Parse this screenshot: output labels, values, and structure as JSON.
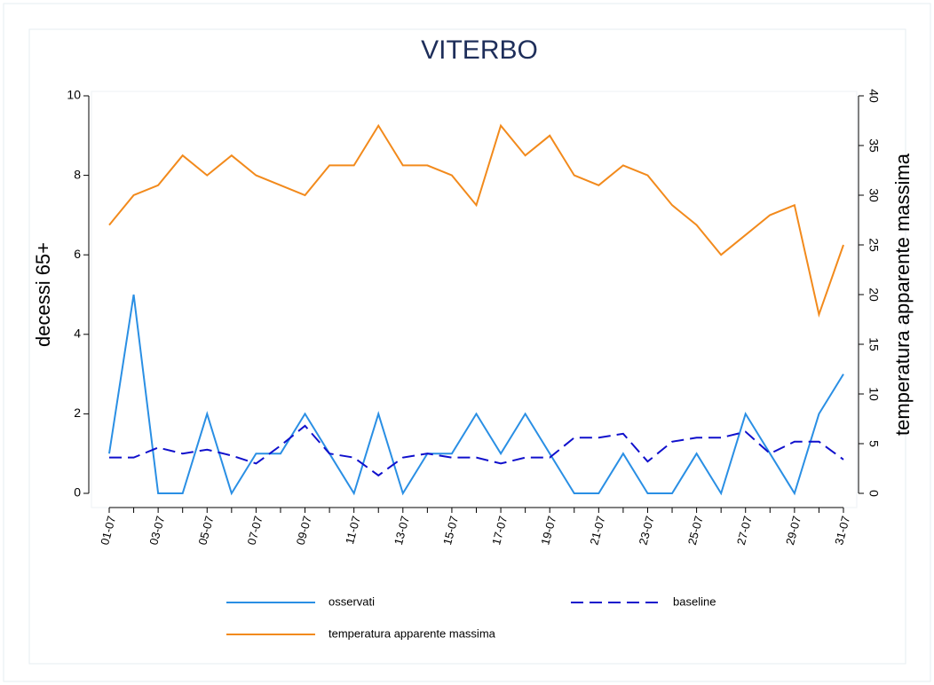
{
  "chart_data": {
    "type": "line",
    "title": "VITERBO",
    "ylabel": "decessi 65+",
    "y2label": "temperatura apparente massima",
    "categories": [
      "01-07",
      null,
      "03-07",
      null,
      "05-07",
      null,
      "07-07",
      null,
      "09-07",
      null,
      "11-07",
      null,
      "13-07",
      null,
      "15-07",
      null,
      "17-07",
      null,
      "19-07",
      null,
      "21-07",
      null,
      "23-07",
      null,
      "25-07",
      null,
      "27-07",
      null,
      "29-07",
      null,
      "31-07"
    ],
    "series": [
      {
        "name": "osservati",
        "color": "#2a8fe4",
        "dash": false,
        "axis": "y",
        "values": [
          1,
          5,
          0,
          0,
          2,
          0,
          1,
          1,
          2,
          1,
          0,
          2,
          0,
          1,
          1,
          2,
          1,
          2,
          1,
          0,
          0,
          1,
          0,
          0,
          1,
          0,
          2,
          1,
          0,
          2,
          3
        ]
      },
      {
        "name": "baseline",
        "color": "#1010cc",
        "dash": true,
        "axis": "y",
        "values": [
          0.9,
          0.9,
          1.15,
          1.0,
          1.1,
          0.95,
          0.75,
          1.2,
          1.7,
          1.0,
          0.9,
          0.45,
          0.9,
          1.0,
          0.9,
          0.9,
          0.75,
          0.9,
          0.9,
          1.4,
          1.4,
          1.5,
          0.8,
          1.3,
          1.4,
          1.4,
          1.55,
          1.0,
          1.3,
          1.3,
          0.85
        ]
      },
      {
        "name": "temperatura apparente massima",
        "color": "#f28a1c",
        "dash": false,
        "axis": "y2",
        "values": [
          27,
          30,
          31,
          34,
          32,
          34,
          32,
          31,
          30,
          33,
          33,
          37,
          33,
          33,
          32,
          29,
          37,
          34,
          36,
          32,
          31,
          33,
          32,
          29,
          27,
          24,
          26,
          28,
          29,
          18,
          25
        ]
      }
    ],
    "ylim": [
      0,
      10
    ],
    "yticks": [
      0,
      2,
      4,
      6,
      8,
      10
    ],
    "y2lim": [
      0,
      40
    ],
    "y2ticks": [
      0,
      5,
      10,
      15,
      20,
      25,
      30,
      35,
      40
    ],
    "legend": "bottom"
  }
}
